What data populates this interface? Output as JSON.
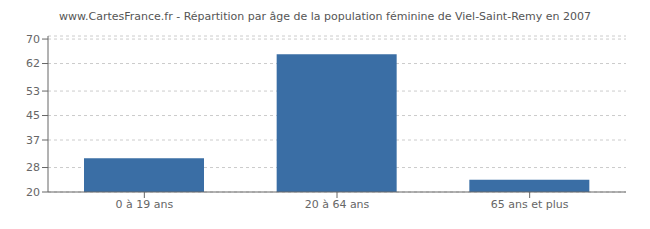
{
  "chart_data": {
    "type": "bar",
    "title": "www.CartesFrance.fr - Répartition par âge de la population féminine de Viel-Saint-Remy en 2007",
    "categories": [
      "0 à 19 ans",
      "20 à 64 ans",
      "65 ans et plus"
    ],
    "values": [
      31,
      65,
      24
    ],
    "color": "#3a6ea5",
    "ylim": [
      20,
      71
    ],
    "yticks": [
      20,
      28,
      37,
      45,
      53,
      62,
      70
    ],
    "grid": true
  }
}
